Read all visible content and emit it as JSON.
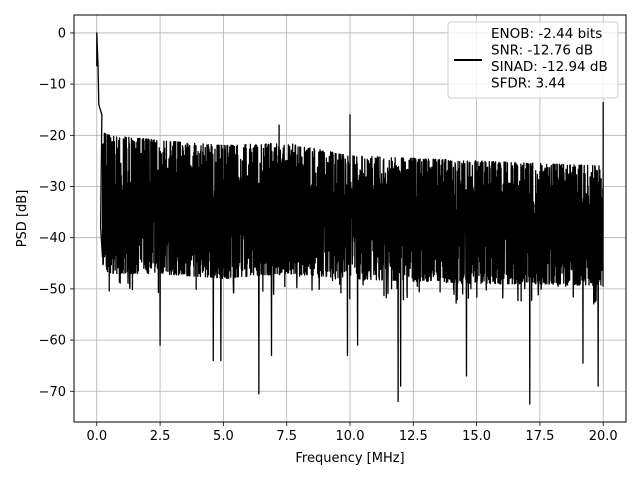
{
  "chart_data": {
    "type": "line",
    "title": "",
    "xlabel": "Frequency [MHz]",
    "ylabel": "PSD [dB]",
    "xlim": [
      -0.9,
      20.9
    ],
    "ylim": [
      -76,
      3.5
    ],
    "grid": true,
    "xticks": [
      0.0,
      2.5,
      5.0,
      7.5,
      10.0,
      12.5,
      15.0,
      17.5,
      20.0
    ],
    "xtick_labels": [
      "0.0",
      "2.5",
      "5.0",
      "7.5",
      "10.0",
      "12.5",
      "15.0",
      "17.5",
      "20.0"
    ],
    "yticks": [
      0,
      -10,
      -20,
      -30,
      -40,
      -50,
      -60,
      -70
    ],
    "ytick_labels": [
      "0",
      "−10",
      "−20",
      "−30",
      "−40",
      "−50",
      "−60",
      "−70"
    ],
    "legend": {
      "placement": "top-right",
      "line_color": "#000000",
      "entries": [
        "ENOB: -2.44 bits",
        "SNR: -12.76 dB",
        "SINAD: -12.94 dB",
        "SFDR: 3.44"
      ]
    },
    "series": [
      {
        "color": "#000000",
        "noise_band": {
          "x": [
            0.0,
            0.5,
            2.5,
            5.0,
            7.5,
            10.0,
            12.5,
            15.0,
            17.5,
            20.0
          ],
          "upper_db": [
            -19,
            -20,
            -21,
            -22,
            -21.5,
            -24,
            -24.5,
            -25,
            -25.5,
            -26
          ],
          "lower_db": [
            -45,
            -47,
            -47,
            -48,
            -47,
            -48,
            -48.5,
            -49,
            -49,
            -49.5
          ]
        },
        "peaks": [
          {
            "x": 0.0,
            "y": 0.0
          },
          {
            "x": 0.05,
            "y": -6.5
          },
          {
            "x": 0.08,
            "y": -14
          },
          {
            "x": 0.2,
            "y": -16
          },
          {
            "x": 7.2,
            "y": -18
          },
          {
            "x": 10.0,
            "y": -16
          },
          {
            "x": 20.0,
            "y": -13.5
          }
        ],
        "dips": [
          {
            "x": 2.5,
            "y": -61
          },
          {
            "x": 4.6,
            "y": -64
          },
          {
            "x": 4.9,
            "y": -64
          },
          {
            "x": 6.4,
            "y": -70.5
          },
          {
            "x": 6.9,
            "y": -63
          },
          {
            "x": 9.9,
            "y": -63
          },
          {
            "x": 10.3,
            "y": -61
          },
          {
            "x": 11.9,
            "y": -72
          },
          {
            "x": 12.0,
            "y": -69
          },
          {
            "x": 14.6,
            "y": -67
          },
          {
            "x": 17.1,
            "y": -72.5
          },
          {
            "x": 19.2,
            "y": -64.5
          },
          {
            "x": 19.8,
            "y": -69
          }
        ]
      }
    ]
  }
}
